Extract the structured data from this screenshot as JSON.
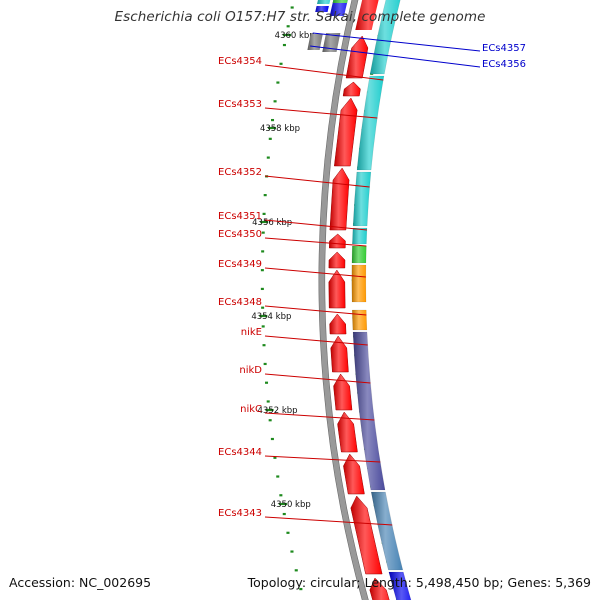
{
  "map": {
    "title": "Escherichia coli O157:H7 str. Sakai, complete genome",
    "accession_text": "Accession: NC_002695",
    "summary_text": "Topology: circular; Length: 5,498,450 bp; Genes: 5,369",
    "colors": {
      "background": "#ffffff",
      "backbone": "#999999",
      "gene_label_red": "#cc0000",
      "gene_label_blue": "#0000cc",
      "tick": "#1e8a1e",
      "forward_gene": "#ff0000",
      "reverse_gene": "#0000ee",
      "cog_cyan": "#1ecdcd",
      "cog_green": "#33cc33",
      "cog_orange": "#ff9900",
      "cog_purple": "#4a4a9c",
      "cog_steel": "#4682b4",
      "cog_gray": "#777777"
    },
    "tick_labels": [
      "4360 kbp",
      "4358 kbp",
      "4356 kbp",
      "4354 kbp",
      "4352 kbp",
      "4350 kbp"
    ],
    "gene_labels": [
      {
        "text": "ECs4354",
        "color": "red"
      },
      {
        "text": "ECs4353",
        "color": "red"
      },
      {
        "text": "ECs4352",
        "color": "red"
      },
      {
        "text": "ECs4351",
        "color": "red"
      },
      {
        "text": "ECs4350",
        "color": "red"
      },
      {
        "text": "ECs4349",
        "color": "red"
      },
      {
        "text": "ECs4348",
        "color": "red"
      },
      {
        "text": "nikE",
        "color": "red"
      },
      {
        "text": "nikD",
        "color": "red"
      },
      {
        "text": "nikC",
        "color": "red"
      },
      {
        "text": "ECs4344",
        "color": "red"
      },
      {
        "text": "ECs4343",
        "color": "red"
      },
      {
        "text": "ECs4357",
        "color": "blue"
      },
      {
        "text": "ECs4356",
        "color": "blue"
      }
    ]
  }
}
